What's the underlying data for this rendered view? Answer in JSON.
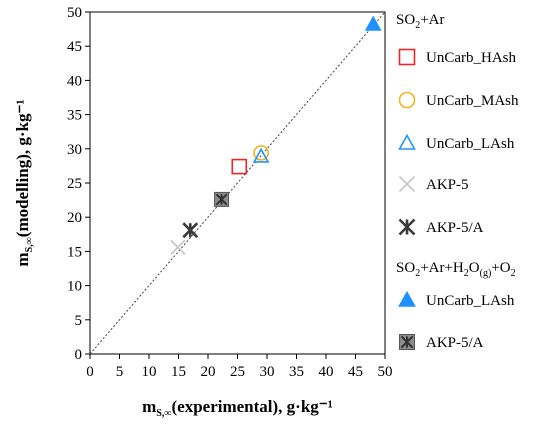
{
  "chart_data": {
    "type": "scatter",
    "title": "",
    "xlabel": {
      "main": "m",
      "sub": "S,∞",
      "rest": "(experimental), g·kg⁻¹"
    },
    "ylabel": {
      "main": "m",
      "sub": "S,∞",
      "rest": "(modelling), g·kg⁻¹"
    },
    "xlim": [
      0,
      50
    ],
    "ylim": [
      0,
      50
    ],
    "xticks": [
      "0",
      "5",
      "10",
      "15",
      "20",
      "25",
      "30",
      "35",
      "40",
      "45",
      "50"
    ],
    "yticks": [
      "0",
      "5",
      "10",
      "15",
      "20",
      "25",
      "30",
      "35",
      "40",
      "45",
      "50"
    ],
    "grid": false,
    "legend_position": "right",
    "reference_line": {
      "type": "dotted",
      "from": [
        0,
        0
      ],
      "to": [
        50,
        50
      ]
    },
    "groups": [
      {
        "title_parts": [
          {
            "t": "SO"
          },
          {
            "t": "2",
            "s": "sub"
          },
          {
            "t": "+Ar"
          }
        ]
      },
      {
        "title_parts": [
          {
            "t": "SO"
          },
          {
            "t": "2",
            "s": "sub"
          },
          {
            "t": "+Ar+H"
          },
          {
            "t": "2",
            "s": "sub"
          },
          {
            "t": "O"
          },
          {
            "t": "(g)",
            "s": "sub"
          },
          {
            "t": "+O"
          },
          {
            "t": "2",
            "s": "sub"
          }
        ]
      }
    ],
    "series": [
      {
        "name": "UnCarb_HAsh",
        "group": 0,
        "marker": "square-open",
        "color": "#e8262a",
        "x": [
          25.3
        ],
        "y": [
          27.4
        ]
      },
      {
        "name": "UnCarb_MAsh",
        "group": 0,
        "marker": "circle-open",
        "color": "#f4b41a",
        "x": [
          29.0
        ],
        "y": [
          29.4
        ]
      },
      {
        "name": "UnCarb_LAsh",
        "group": 0,
        "marker": "triangle-open",
        "color": "#2196f3",
        "x": [
          29.0
        ],
        "y": [
          28.9
        ]
      },
      {
        "name": "AKP-5",
        "group": 0,
        "marker": "x",
        "color": "#c8c8c8",
        "x": [
          14.9
        ],
        "y": [
          15.6
        ]
      },
      {
        "name": "AKP-5/A",
        "group": 0,
        "marker": "asterisk",
        "color": "#3a3a3a",
        "x": [
          17.0
        ],
        "y": [
          18.1
        ]
      },
      {
        "name": "UnCarb_LAsh",
        "group": 1,
        "marker": "triangle-filled",
        "color": "#1e90ff",
        "x": [
          48.0
        ],
        "y": [
          48.2
        ]
      },
      {
        "name": "AKP-5/A",
        "group": 1,
        "marker": "square-filled-asterisk",
        "color": "#8c8c8c",
        "x": [
          22.3
        ],
        "y": [
          22.6
        ]
      }
    ]
  }
}
